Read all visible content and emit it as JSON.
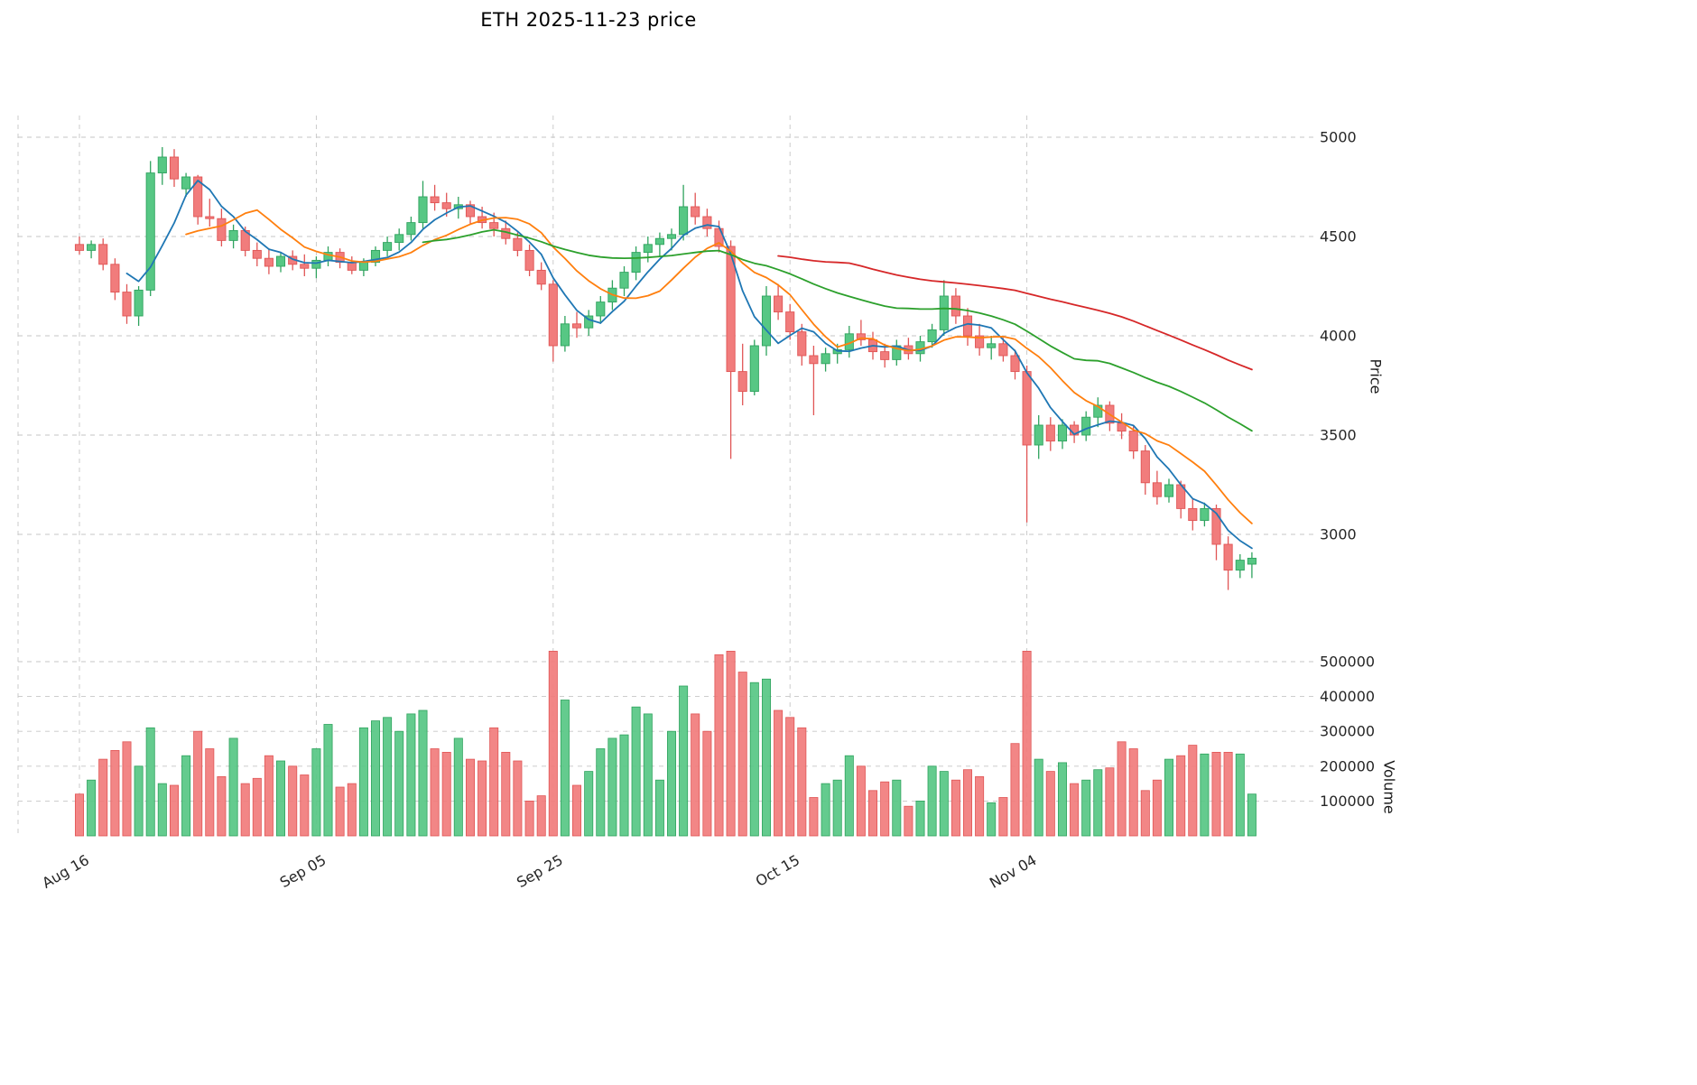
{
  "chart_data": {
    "type": "candlestick",
    "title": "ETH  2025-11-23  price",
    "ylabel": "Price",
    "ylabel2": "Volume",
    "ylim": [
      2600,
      5150
    ],
    "volume_ylim": [
      0,
      560000
    ],
    "grid": true,
    "legend_position": "none",
    "up_color": "#57c784",
    "up_edge": "#2fa35e",
    "down_color": "#f17c7c",
    "down_edge": "#e05555",
    "price_ticks": [
      5000,
      4500,
      4000,
      3500,
      3000
    ],
    "volume_ticks": [
      500000,
      400000,
      300000,
      200000,
      100000
    ],
    "x_ticks": [
      {
        "label": "Aug 16",
        "index": 0
      },
      {
        "label": "Sep 05",
        "index": 20
      },
      {
        "label": "Sep 25",
        "index": 40
      },
      {
        "label": "Oct 15",
        "index": 60
      },
      {
        "label": "Nov 04",
        "index": 80
      }
    ],
    "moving_averages": [
      {
        "window": 5,
        "color": "#1f77b4"
      },
      {
        "window": 10,
        "color": "#ff7f0e"
      },
      {
        "window": 30,
        "color": "#2ca02c"
      },
      {
        "window": 60,
        "color": "#d62728"
      }
    ],
    "dates": [
      "2025-08-16",
      "2025-08-17",
      "2025-08-18",
      "2025-08-19",
      "2025-08-20",
      "2025-08-21",
      "2025-08-22",
      "2025-08-23",
      "2025-08-24",
      "2025-08-25",
      "2025-08-26",
      "2025-08-27",
      "2025-08-28",
      "2025-08-29",
      "2025-08-30",
      "2025-08-31",
      "2025-09-01",
      "2025-09-02",
      "2025-09-03",
      "2025-09-04",
      "2025-09-05",
      "2025-09-06",
      "2025-09-07",
      "2025-09-08",
      "2025-09-09",
      "2025-09-10",
      "2025-09-11",
      "2025-09-12",
      "2025-09-13",
      "2025-09-14",
      "2025-09-15",
      "2025-09-16",
      "2025-09-17",
      "2025-09-18",
      "2025-09-19",
      "2025-09-20",
      "2025-09-21",
      "2025-09-22",
      "2025-09-23",
      "2025-09-24",
      "2025-09-25",
      "2025-09-26",
      "2025-09-27",
      "2025-09-28",
      "2025-09-29",
      "2025-09-30",
      "2025-10-01",
      "2025-10-02",
      "2025-10-03",
      "2025-10-04",
      "2025-10-05",
      "2025-10-06",
      "2025-10-07",
      "2025-10-08",
      "2025-10-09",
      "2025-10-10",
      "2025-10-11",
      "2025-10-12",
      "2025-10-13",
      "2025-10-14",
      "2025-10-15",
      "2025-10-16",
      "2025-10-17",
      "2025-10-18",
      "2025-10-19",
      "2025-10-20",
      "2025-10-21",
      "2025-10-22",
      "2025-10-23",
      "2025-10-24",
      "2025-10-25",
      "2025-10-26",
      "2025-10-27",
      "2025-10-28",
      "2025-10-29",
      "2025-10-30",
      "2025-10-31",
      "2025-11-01",
      "2025-11-02",
      "2025-11-03",
      "2025-11-04",
      "2025-11-05",
      "2025-11-06",
      "2025-11-07",
      "2025-11-08",
      "2025-11-09",
      "2025-11-10",
      "2025-11-11",
      "2025-11-12",
      "2025-11-13",
      "2025-11-14",
      "2025-11-15",
      "2025-11-16",
      "2025-11-17",
      "2025-11-18",
      "2025-11-19",
      "2025-11-20",
      "2025-11-21",
      "2025-11-22",
      "2025-11-23"
    ],
    "ohlc": [
      [
        4460,
        4500,
        4410,
        4430
      ],
      [
        4430,
        4480,
        4390,
        4460
      ],
      [
        4460,
        4490,
        4330,
        4360
      ],
      [
        4360,
        4390,
        4180,
        4220
      ],
      [
        4220,
        4260,
        4060,
        4100
      ],
      [
        4100,
        4250,
        4050,
        4230
      ],
      [
        4230,
        4880,
        4200,
        4820
      ],
      [
        4820,
        4950,
        4760,
        4900
      ],
      [
        4900,
        4940,
        4750,
        4790
      ],
      [
        4740,
        4820,
        4700,
        4800
      ],
      [
        4800,
        4810,
        4560,
        4600
      ],
      [
        4600,
        4690,
        4550,
        4590
      ],
      [
        4590,
        4640,
        4450,
        4480
      ],
      [
        4480,
        4560,
        4440,
        4530
      ],
      [
        4530,
        4550,
        4400,
        4430
      ],
      [
        4430,
        4470,
        4350,
        4390
      ],
      [
        4390,
        4440,
        4310,
        4350
      ],
      [
        4350,
        4420,
        4320,
        4400
      ],
      [
        4400,
        4430,
        4330,
        4360
      ],
      [
        4360,
        4410,
        4300,
        4340
      ],
      [
        4340,
        4400,
        4290,
        4380
      ],
      [
        4380,
        4450,
        4350,
        4420
      ],
      [
        4420,
        4440,
        4340,
        4370
      ],
      [
        4370,
        4400,
        4310,
        4330
      ],
      [
        4330,
        4390,
        4300,
        4370
      ],
      [
        4370,
        4450,
        4350,
        4430
      ],
      [
        4430,
        4500,
        4400,
        4470
      ],
      [
        4470,
        4540,
        4430,
        4510
      ],
      [
        4510,
        4600,
        4480,
        4570
      ],
      [
        4570,
        4780,
        4540,
        4700
      ],
      [
        4700,
        4760,
        4630,
        4670
      ],
      [
        4670,
        4720,
        4600,
        4640
      ],
      [
        4640,
        4700,
        4590,
        4660
      ],
      [
        4660,
        4680,
        4560,
        4600
      ],
      [
        4600,
        4650,
        4540,
        4570
      ],
      [
        4570,
        4620,
        4500,
        4540
      ],
      [
        4540,
        4580,
        4460,
        4490
      ],
      [
        4490,
        4520,
        4400,
        4430
      ],
      [
        4430,
        4460,
        4300,
        4330
      ],
      [
        4330,
        4370,
        4230,
        4260
      ],
      [
        4260,
        4280,
        3870,
        3950
      ],
      [
        3950,
        4100,
        3920,
        4060
      ],
      [
        4060,
        4120,
        3990,
        4040
      ],
      [
        4040,
        4130,
        4000,
        4100
      ],
      [
        4100,
        4200,
        4060,
        4170
      ],
      [
        4170,
        4280,
        4130,
        4240
      ],
      [
        4240,
        4350,
        4200,
        4320
      ],
      [
        4320,
        4450,
        4280,
        4420
      ],
      [
        4420,
        4500,
        4370,
        4460
      ],
      [
        4460,
        4520,
        4400,
        4490
      ],
      [
        4490,
        4540,
        4430,
        4510
      ],
      [
        4510,
        4760,
        4480,
        4650
      ],
      [
        4650,
        4720,
        4560,
        4600
      ],
      [
        4600,
        4640,
        4500,
        4540
      ],
      [
        4540,
        4580,
        4420,
        4450
      ],
      [
        4450,
        4480,
        3380,
        3820
      ],
      [
        3820,
        3960,
        3650,
        3720
      ],
      [
        3720,
        3980,
        3700,
        3950
      ],
      [
        3950,
        4250,
        3900,
        4200
      ],
      [
        4200,
        4260,
        4080,
        4120
      ],
      [
        4120,
        4160,
        3980,
        4020
      ],
      [
        4020,
        4060,
        3850,
        3900
      ],
      [
        3900,
        3950,
        3600,
        3860
      ],
      [
        3860,
        3940,
        3820,
        3910
      ],
      [
        3910,
        3960,
        3860,
        3930
      ],
      [
        3930,
        4050,
        3890,
        4010
      ],
      [
        4010,
        4080,
        3950,
        3980
      ],
      [
        3980,
        4020,
        3880,
        3920
      ],
      [
        3920,
        3960,
        3840,
        3880
      ],
      [
        3880,
        3980,
        3850,
        3950
      ],
      [
        3950,
        3990,
        3880,
        3910
      ],
      [
        3910,
        4000,
        3870,
        3970
      ],
      [
        3970,
        4060,
        3940,
        4030
      ],
      [
        4030,
        4280,
        4000,
        4200
      ],
      [
        4200,
        4240,
        4060,
        4100
      ],
      [
        4100,
        4140,
        3950,
        4000
      ],
      [
        4000,
        4060,
        3900,
        3940
      ],
      [
        3940,
        4000,
        3880,
        3960
      ],
      [
        3960,
        3990,
        3870,
        3900
      ],
      [
        3900,
        3930,
        3780,
        3820
      ],
      [
        3820,
        3850,
        3060,
        3450
      ],
      [
        3450,
        3600,
        3380,
        3550
      ],
      [
        3550,
        3590,
        3420,
        3470
      ],
      [
        3470,
        3580,
        3430,
        3550
      ],
      [
        3550,
        3570,
        3460,
        3500
      ],
      [
        3500,
        3620,
        3470,
        3590
      ],
      [
        3590,
        3690,
        3540,
        3650
      ],
      [
        3650,
        3670,
        3520,
        3560
      ],
      [
        3560,
        3610,
        3480,
        3520
      ],
      [
        3520,
        3550,
        3380,
        3420
      ],
      [
        3420,
        3450,
        3200,
        3260
      ],
      [
        3260,
        3320,
        3150,
        3190
      ],
      [
        3190,
        3280,
        3160,
        3250
      ],
      [
        3250,
        3270,
        3080,
        3130
      ],
      [
        3130,
        3180,
        3020,
        3070
      ],
      [
        3070,
        3160,
        3040,
        3130
      ],
      [
        3130,
        3150,
        2870,
        2950
      ],
      [
        2950,
        2990,
        2720,
        2820
      ],
      [
        2820,
        2900,
        2780,
        2870
      ],
      [
        2850,
        2910,
        2780,
        2880
      ]
    ],
    "volume": [
      120000,
      160000,
      220000,
      245000,
      270000,
      200000,
      310000,
      150000,
      145000,
      230000,
      300000,
      250000,
      170000,
      280000,
      150000,
      165000,
      230000,
      215000,
      200000,
      175000,
      250000,
      320000,
      140000,
      150000,
      310000,
      330000,
      340000,
      300000,
      350000,
      360000,
      250000,
      240000,
      280000,
      220000,
      215000,
      310000,
      240000,
      215000,
      100000,
      115000,
      530000,
      390000,
      145000,
      185000,
      250000,
      280000,
      290000,
      370000,
      350000,
      160000,
      300000,
      430000,
      350000,
      300000,
      520000,
      530000,
      470000,
      440000,
      450000,
      360000,
      340000,
      310000,
      110000,
      150000,
      160000,
      230000,
      200000,
      130000,
      155000,
      160000,
      85000,
      100000,
      200000,
      185000,
      160000,
      190000,
      170000,
      95000,
      110000,
      265000,
      530000,
      220000,
      185000,
      210000,
      150000,
      160000,
      190000,
      195000,
      270000,
      250000,
      130000,
      160000,
      220000,
      230000,
      260000,
      235000,
      240000,
      240000,
      235000,
      120000
    ]
  }
}
